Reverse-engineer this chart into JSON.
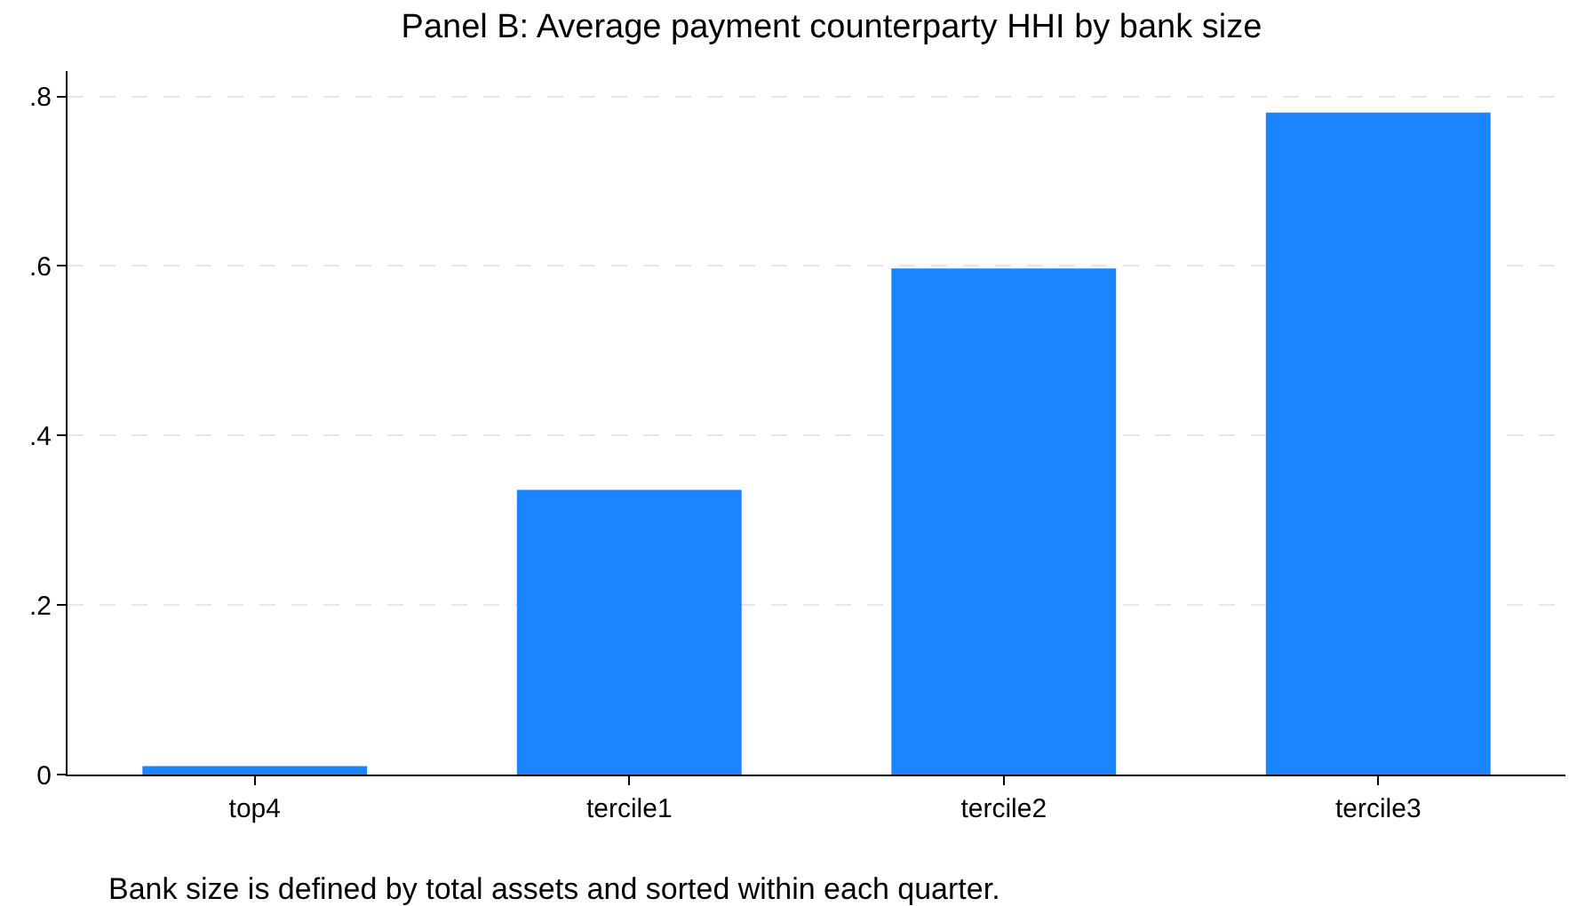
{
  "chart_data": {
    "type": "bar",
    "title": "Panel B: Average payment counterparty HHI by bank size",
    "categories": [
      "top4",
      "tercile1",
      "tercile2",
      "tercile3"
    ],
    "values": [
      0.01,
      0.336,
      0.597,
      0.781
    ],
    "color": "#1a85ff",
    "ylim": [
      0,
      0.83
    ],
    "yticks": [
      0,
      {
        "value": 0.2,
        "label": ".2"
      },
      {
        "value": 0.4,
        "label": ".4"
      },
      {
        "value": 0.6,
        "label": ".6"
      },
      {
        "value": 0.8,
        "label": ".8"
      }
    ],
    "grid": "y",
    "annotations": [
      "Bank size is defined by total assets and sorted within each quarter."
    ]
  }
}
